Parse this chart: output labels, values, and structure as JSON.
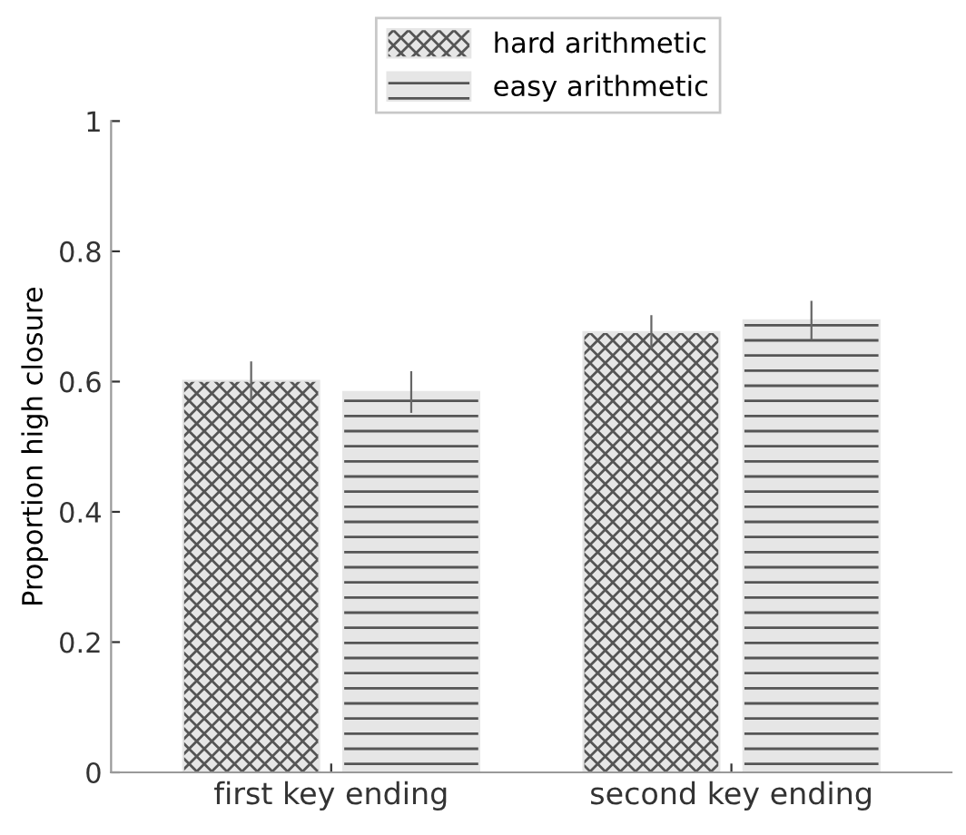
{
  "chart_data": {
    "type": "bar",
    "ylabel": "Proportion high closure",
    "categories": [
      "first key ending",
      "second key ending"
    ],
    "series": [
      {
        "name": "hard arithmetic",
        "color": "#e6e6e6",
        "values": [
          0.601,
          0.676
        ],
        "errors": [
          0.03,
          0.026
        ]
      },
      {
        "name": "easy arithmetic",
        "color": "#e6e6e6",
        "values": [
          0.584,
          0.694
        ],
        "errors": [
          0.032,
          0.03
        ]
      }
    ],
    "ylim": [
      0,
      1
    ],
    "yticks": [
      0,
      0.2,
      0.4,
      0.6,
      0.8,
      1
    ],
    "grid": false,
    "legend": "top"
  }
}
